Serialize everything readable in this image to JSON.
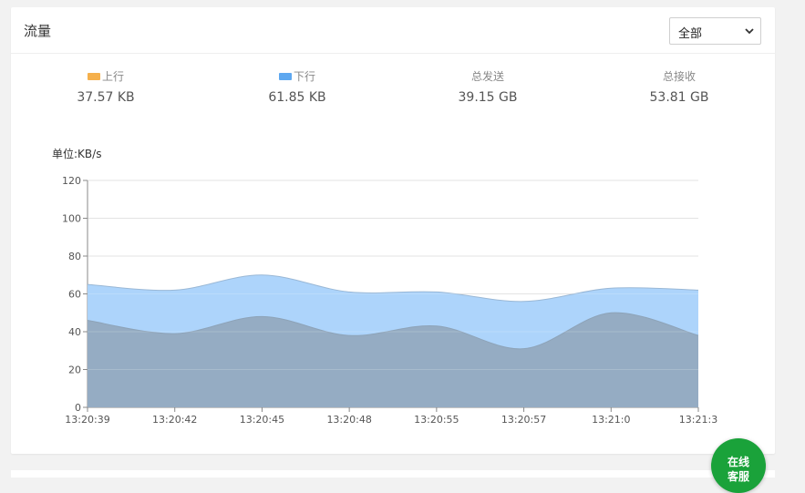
{
  "panel": {
    "title": "流量",
    "range_select": {
      "value": "全部"
    }
  },
  "stats": [
    {
      "label": "上行",
      "value": "37.57 KB",
      "swatch": "#f5b04c"
    },
    {
      "label": "下行",
      "value": "61.85 KB",
      "swatch": "#5ea8f0"
    },
    {
      "label": "总发送",
      "value": "39.15 GB"
    },
    {
      "label": "总接收",
      "value": "53.81 GB"
    }
  ],
  "chat_button": {
    "line1": "在线",
    "line2": "客服"
  },
  "chart_data": {
    "type": "area",
    "ylabel": "单位:KB/s",
    "categories": [
      "13:20:39",
      "13:20:42",
      "13:20:45",
      "13:20:48",
      "13:20:55",
      "13:20:57",
      "13:21:0",
      "13:21:3"
    ],
    "ylim": [
      0,
      120
    ],
    "yticks": [
      0,
      20,
      40,
      60,
      80,
      100,
      120
    ],
    "grid": true,
    "series": [
      {
        "name": "下行",
        "values": [
          65,
          62,
          70,
          61,
          61,
          56,
          63,
          62
        ],
        "color": "#a9d2fb"
      },
      {
        "name": "上行",
        "values": [
          46,
          39,
          48,
          38,
          43,
          31,
          50,
          38
        ],
        "color": "#93aac0"
      }
    ]
  }
}
